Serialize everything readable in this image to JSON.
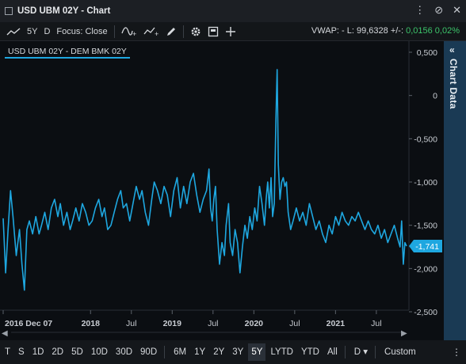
{
  "window": {
    "title": "USD UBM 02Y - Chart"
  },
  "toolbar": {
    "period": "5Y",
    "interval": "D",
    "focus": "Focus: Close",
    "vwap": "VWAP: -",
    "last": "L: 99,6328",
    "change_label": "+/-:",
    "change_abs": "0,0156",
    "change_pct": "0,02%"
  },
  "chart": {
    "legend": "USD UBM 02Y - DEM BMK 02Y",
    "last_value_label": "-1,741"
  },
  "side_panel": {
    "label": "Chart Data"
  },
  "bottom": {
    "periods": [
      "T",
      "S",
      "1D",
      "2D",
      "5D",
      "10D",
      "30D",
      "90D",
      "6M",
      "1Y",
      "2Y",
      "3Y",
      "5Y",
      "LYTD",
      "YTD",
      "All"
    ],
    "active_period": "5Y",
    "interval_select": "D",
    "custom": "Custom"
  },
  "colors": {
    "line": "#1ea7e0",
    "accent_panel": "#1a3a54",
    "change_positive": "#3cc46a"
  },
  "chart_data": {
    "type": "line",
    "title": "",
    "xlabel": "",
    "ylabel": "",
    "x_ticks": [
      "2016 Dec 07",
      "2018",
      "Jul",
      "2019",
      "Jul",
      "2020",
      "Jul",
      "2021",
      "Jul"
    ],
    "y_ticks": [
      "0,500",
      "0",
      "-0,500",
      "-1,000",
      "-1,500",
      "-2,000",
      "-2,500"
    ],
    "ylim": [
      -2.5,
      0.5
    ],
    "series": [
      {
        "values": [
          [
            2016.93,
            -1.42
          ],
          [
            2016.96,
            -2.05
          ],
          [
            2016.99,
            -1.55
          ],
          [
            2017.02,
            -1.1
          ],
          [
            2017.05,
            -1.4
          ],
          [
            2017.09,
            -1.85
          ],
          [
            2017.13,
            -1.55
          ],
          [
            2017.16,
            -1.95
          ],
          [
            2017.19,
            -2.25
          ],
          [
            2017.22,
            -1.55
          ],
          [
            2017.25,
            -1.45
          ],
          [
            2017.29,
            -1.6
          ],
          [
            2017.33,
            -1.4
          ],
          [
            2017.37,
            -1.6
          ],
          [
            2017.4,
            -1.5
          ],
          [
            2017.44,
            -1.35
          ],
          [
            2017.48,
            -1.55
          ],
          [
            2017.52,
            -1.3
          ],
          [
            2017.56,
            -1.2
          ],
          [
            2017.6,
            -1.4
          ],
          [
            2017.63,
            -1.25
          ],
          [
            2017.67,
            -1.5
          ],
          [
            2017.71,
            -1.35
          ],
          [
            2017.75,
            -1.55
          ],
          [
            2017.78,
            -1.45
          ],
          [
            2017.82,
            -1.3
          ],
          [
            2017.86,
            -1.45
          ],
          [
            2017.9,
            -1.25
          ],
          [
            2017.94,
            -1.35
          ],
          [
            2017.98,
            -1.5
          ],
          [
            2018.02,
            -1.45
          ],
          [
            2018.06,
            -1.3
          ],
          [
            2018.1,
            -1.2
          ],
          [
            2018.14,
            -1.4
          ],
          [
            2018.17,
            -1.3
          ],
          [
            2018.21,
            -1.55
          ],
          [
            2018.25,
            -1.5
          ],
          [
            2018.29,
            -1.35
          ],
          [
            2018.33,
            -1.2
          ],
          [
            2018.37,
            -1.1
          ],
          [
            2018.4,
            -1.3
          ],
          [
            2018.44,
            -1.25
          ],
          [
            2018.48,
            -1.45
          ],
          [
            2018.52,
            -1.25
          ],
          [
            2018.56,
            -1.05
          ],
          [
            2018.6,
            -1.2
          ],
          [
            2018.63,
            -1.1
          ],
          [
            2018.67,
            -1.35
          ],
          [
            2018.71,
            -1.5
          ],
          [
            2018.75,
            -1.2
          ],
          [
            2018.78,
            -1.0
          ],
          [
            2018.82,
            -1.1
          ],
          [
            2018.86,
            -1.25
          ],
          [
            2018.9,
            -1.05
          ],
          [
            2018.94,
            -1.15
          ],
          [
            2018.98,
            -1.4
          ],
          [
            2019.02,
            -1.1
          ],
          [
            2019.06,
            -0.95
          ],
          [
            2019.1,
            -1.3
          ],
          [
            2019.14,
            -1.05
          ],
          [
            2019.18,
            -1.25
          ],
          [
            2019.22,
            -1.0
          ],
          [
            2019.26,
            -0.9
          ],
          [
            2019.3,
            -1.15
          ],
          [
            2019.34,
            -1.35
          ],
          [
            2019.38,
            -1.2
          ],
          [
            2019.42,
            -1.1
          ],
          [
            2019.45,
            -0.85
          ],
          [
            2019.47,
            -1.3
          ],
          [
            2019.49,
            -1.45
          ],
          [
            2019.51,
            -1.2
          ],
          [
            2019.53,
            -1.05
          ],
          [
            2019.55,
            -1.55
          ],
          [
            2019.58,
            -1.95
          ],
          [
            2019.61,
            -1.7
          ],
          [
            2019.64,
            -1.85
          ],
          [
            2019.66,
            -1.5
          ],
          [
            2019.69,
            -1.25
          ],
          [
            2019.71,
            -1.7
          ],
          [
            2019.74,
            -1.85
          ],
          [
            2019.77,
            -1.55
          ],
          [
            2019.8,
            -1.7
          ],
          [
            2019.83,
            -2.05
          ],
          [
            2019.86,
            -1.75
          ],
          [
            2019.89,
            -1.5
          ],
          [
            2019.92,
            -1.65
          ],
          [
            2019.95,
            -1.4
          ],
          [
            2019.98,
            -1.55
          ],
          [
            2020.01,
            -1.3
          ],
          [
            2020.04,
            -1.45
          ],
          [
            2020.07,
            -1.05
          ],
          [
            2020.1,
            -1.25
          ],
          [
            2020.13,
            -1.5
          ],
          [
            2020.15,
            -1.2
          ],
          [
            2020.17,
            -1.0
          ],
          [
            2020.19,
            -1.3
          ],
          [
            2020.21,
            -0.95
          ],
          [
            2020.23,
            -1.4
          ],
          [
            2020.25,
            -1.25
          ],
          [
            2020.27,
            -0.3
          ],
          [
            2020.285,
            0.3
          ],
          [
            2020.3,
            -0.8
          ],
          [
            2020.32,
            -1.2
          ],
          [
            2020.34,
            -1.0
          ],
          [
            2020.36,
            -0.95
          ],
          [
            2020.38,
            -1.05
          ],
          [
            2020.4,
            -1.0
          ],
          [
            2020.42,
            -1.35
          ],
          [
            2020.45,
            -1.55
          ],
          [
            2020.48,
            -1.45
          ],
          [
            2020.52,
            -1.3
          ],
          [
            2020.56,
            -1.45
          ],
          [
            2020.6,
            -1.35
          ],
          [
            2020.64,
            -1.5
          ],
          [
            2020.68,
            -1.25
          ],
          [
            2020.72,
            -1.4
          ],
          [
            2020.76,
            -1.55
          ],
          [
            2020.8,
            -1.45
          ],
          [
            2020.84,
            -1.6
          ],
          [
            2020.88,
            -1.7
          ],
          [
            2020.92,
            -1.5
          ],
          [
            2020.96,
            -1.6
          ],
          [
            2021.0,
            -1.4
          ],
          [
            2021.04,
            -1.5
          ],
          [
            2021.08,
            -1.35
          ],
          [
            2021.12,
            -1.45
          ],
          [
            2021.16,
            -1.5
          ],
          [
            2021.2,
            -1.4
          ],
          [
            2021.24,
            -1.45
          ],
          [
            2021.28,
            -1.35
          ],
          [
            2021.32,
            -1.45
          ],
          [
            2021.36,
            -1.55
          ],
          [
            2021.4,
            -1.45
          ],
          [
            2021.44,
            -1.55
          ],
          [
            2021.48,
            -1.6
          ],
          [
            2021.52,
            -1.5
          ],
          [
            2021.56,
            -1.65
          ],
          [
            2021.6,
            -1.55
          ],
          [
            2021.64,
            -1.7
          ],
          [
            2021.68,
            -1.6
          ],
          [
            2021.72,
            -1.5
          ],
          [
            2021.76,
            -1.65
          ],
          [
            2021.79,
            -1.75
          ],
          [
            2021.81,
            -1.45
          ],
          [
            2021.83,
            -1.95
          ],
          [
            2021.85,
            -1.7
          ],
          [
            2021.87,
            -1.741
          ]
        ]
      }
    ]
  }
}
